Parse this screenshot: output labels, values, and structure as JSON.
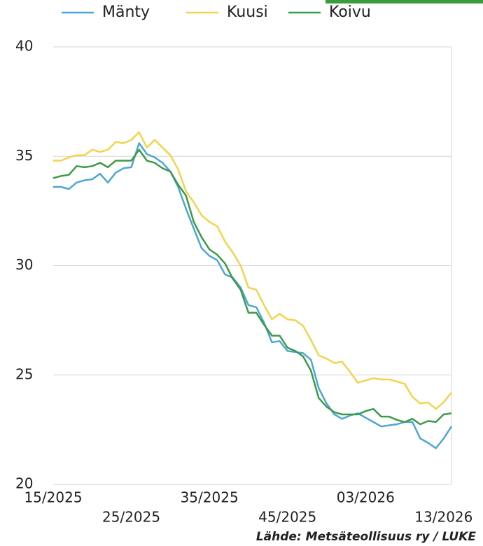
{
  "chart_data": {
    "type": "line",
    "source": "Lähde: Metsäteollisuus ry / LUKE",
    "categories": [
      "15/2025",
      null,
      null,
      null,
      null,
      null,
      null,
      null,
      null,
      null,
      "25/2025",
      null,
      null,
      null,
      null,
      null,
      null,
      null,
      null,
      null,
      "35/2025",
      null,
      null,
      null,
      null,
      null,
      null,
      null,
      null,
      null,
      "45/2025",
      null,
      null,
      null,
      null,
      null,
      null,
      null,
      null,
      null,
      "03/2026",
      null,
      null,
      null,
      null,
      null,
      null,
      null,
      null,
      null,
      "13/2026",
      null
    ],
    "series": [
      {
        "name": "Mänty",
        "color": "#4ea6d4",
        "values": [
          33.6,
          33.6,
          33.5,
          33.8,
          33.9,
          33.95,
          34.2,
          33.8,
          34.25,
          34.45,
          34.5,
          35.6,
          35.1,
          34.95,
          34.7,
          34.3,
          33.6,
          32.6,
          31.7,
          30.8,
          30.45,
          30.25,
          29.6,
          29.45,
          29.0,
          28.2,
          28.1,
          27.4,
          26.5,
          26.55,
          26.1,
          26.05,
          26.0,
          25.7,
          24.4,
          23.7,
          23.2,
          23.0,
          23.15,
          23.25,
          23.05,
          22.85,
          22.65,
          22.7,
          22.75,
          22.85,
          22.85,
          22.1,
          21.9,
          21.65,
          22.1,
          22.65
        ]
      },
      {
        "name": "Kuusi",
        "color": "#f2d44c",
        "values": [
          34.8,
          34.8,
          34.95,
          35.05,
          35.05,
          35.3,
          35.2,
          35.3,
          35.65,
          35.6,
          35.75,
          36.1,
          35.4,
          35.75,
          35.4,
          35.05,
          34.4,
          33.4,
          32.9,
          32.3,
          32.0,
          31.8,
          31.1,
          30.6,
          30.0,
          29.0,
          28.9,
          28.2,
          27.55,
          27.8,
          27.55,
          27.5,
          27.25,
          26.6,
          25.9,
          25.75,
          25.55,
          25.6,
          25.15,
          24.65,
          24.75,
          24.85,
          24.8,
          24.8,
          24.7,
          24.6,
          24.0,
          23.7,
          23.75,
          23.45,
          23.75,
          24.2
        ]
      },
      {
        "name": "Koivu",
        "color": "#3d9a47",
        "values": [
          34.0,
          34.1,
          34.15,
          34.55,
          34.5,
          34.55,
          34.7,
          34.5,
          34.8,
          34.8,
          34.8,
          35.3,
          34.8,
          34.7,
          34.45,
          34.3,
          33.7,
          33.2,
          32.0,
          31.3,
          30.75,
          30.5,
          30.1,
          29.4,
          28.9,
          27.85,
          27.85,
          27.3,
          26.8,
          26.8,
          26.25,
          26.1,
          25.85,
          25.2,
          23.95,
          23.55,
          23.3,
          23.2,
          23.2,
          23.2,
          23.35,
          23.45,
          23.1,
          23.1,
          22.95,
          22.85,
          23.0,
          22.75,
          22.9,
          22.85,
          23.2,
          23.25
        ]
      }
    ],
    "ylim": [
      20,
      40
    ],
    "yticks": [
      20,
      25,
      30,
      35,
      40
    ],
    "grid": true,
    "legend": "top"
  }
}
